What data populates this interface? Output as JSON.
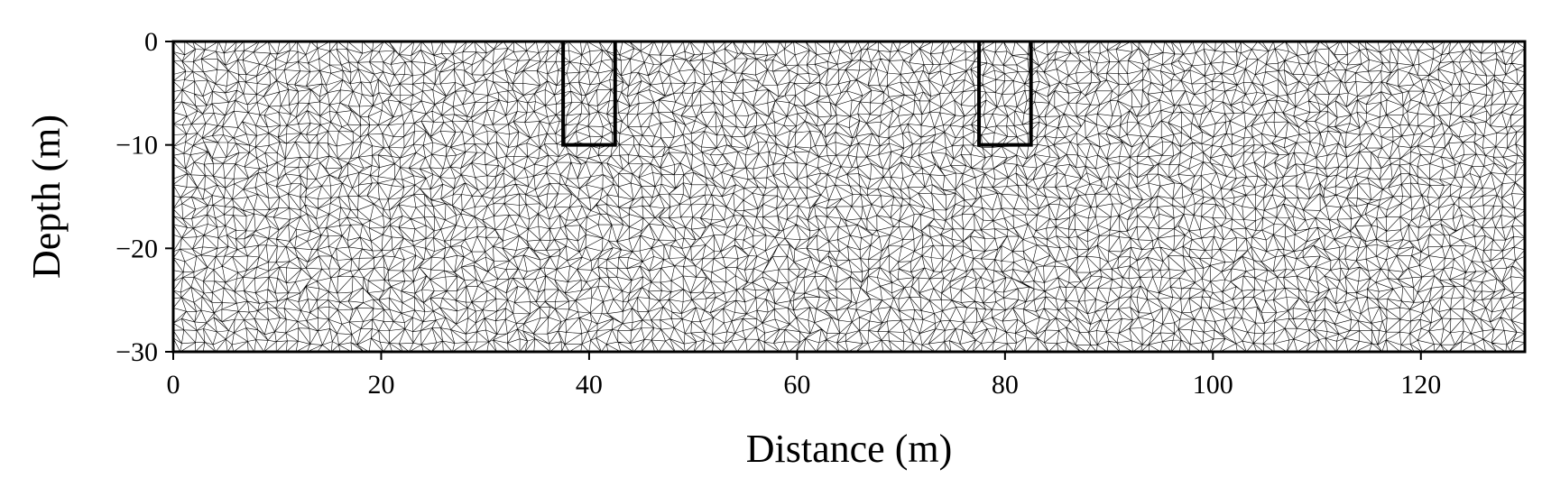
{
  "chart_data": {
    "type": "mesh",
    "title": "",
    "xlabel": "Distance (m)",
    "ylabel": "Depth (m)",
    "xlim": [
      0,
      130
    ],
    "ylim": [
      -30,
      0
    ],
    "xticks": [
      0,
      20,
      40,
      60,
      80,
      100,
      120
    ],
    "yticks": [
      0,
      -10,
      -20,
      -30
    ],
    "xtick_labels": [
      "0",
      "20",
      "40",
      "60",
      "80",
      "100",
      "120"
    ],
    "ytick_labels": [
      "0",
      "−10",
      "−20",
      "−30"
    ],
    "grid": false,
    "legend": "none",
    "mesh": {
      "element": "triangle",
      "approx_edge_length": 1.0,
      "line_color": "#000000"
    },
    "regions": [
      {
        "x": [
          37.5,
          42.5
        ],
        "y": [
          -10,
          0
        ]
      },
      {
        "x": [
          77.5,
          82.5
        ],
        "y": [
          -10,
          0
        ]
      }
    ]
  }
}
